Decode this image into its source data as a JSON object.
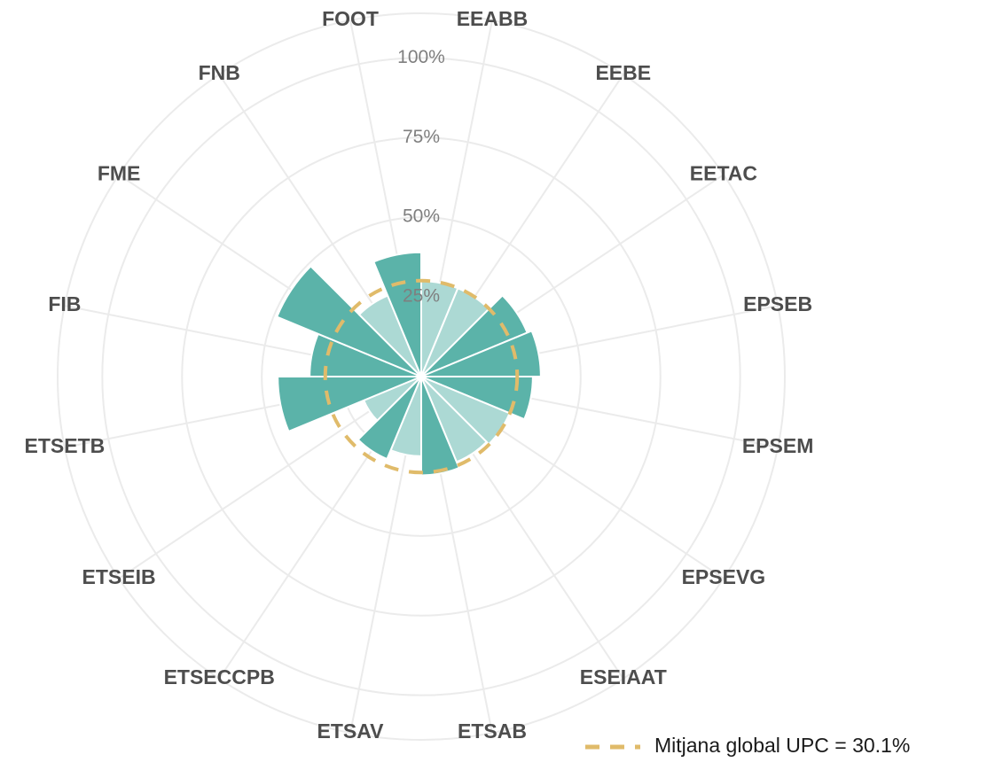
{
  "chart_data": {
    "type": "polar_bar",
    "categories": [
      "EEABB",
      "EEBE",
      "EETAC",
      "EPSEB",
      "EPSEM",
      "EPSEVG",
      "ESEIAAT",
      "ETSAB",
      "ETSAV",
      "ETSECCPB",
      "ETSEIB",
      "ETSETB",
      "FIB",
      "FME",
      "FNB",
      "FOOT"
    ],
    "values": [
      30,
      30,
      36,
      37.5,
      35,
      30,
      29,
      31,
      25,
      28,
      19.5,
      45,
      35,
      49,
      27.5,
      39
    ],
    "colors": [
      "#acd9d4",
      "#acd9d4",
      "#5bb3a9",
      "#5bb3a9",
      "#5bb3a9",
      "#acd9d4",
      "#acd9d4",
      "#5bb3a9",
      "#acd9d4",
      "#5bb3a9",
      "#acd9d4",
      "#5bb3a9",
      "#5bb3a9",
      "#5bb3a9",
      "#acd9d4",
      "#5bb3a9"
    ],
    "ylim": [
      0,
      114
    ],
    "yticks": [
      {
        "value": 25,
        "label": "25%"
      },
      {
        "value": 50,
        "label": "50%"
      },
      {
        "value": 75,
        "label": "75%"
      },
      {
        "value": 100,
        "label": "100%"
      }
    ],
    "grid": true,
    "reference": {
      "value": 30.1,
      "label": "Mitjana global UPC = 30.1%",
      "color": "#e0bb6a"
    }
  }
}
